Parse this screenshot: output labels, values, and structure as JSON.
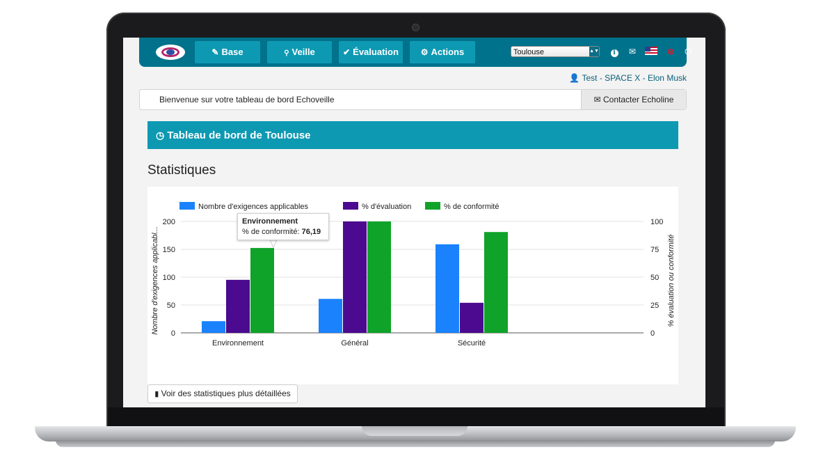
{
  "nav": {
    "items": [
      {
        "icon": "tag-icon",
        "glyph": "✎",
        "label": "Base"
      },
      {
        "icon": "search-icon",
        "glyph": "🔍",
        "label": "Veille"
      },
      {
        "icon": "check-icon",
        "glyph": "✔",
        "label": "Évaluation"
      },
      {
        "icon": "gears-icon",
        "glyph": "⚙",
        "label": "Actions"
      }
    ],
    "city_select": "Toulouse"
  },
  "user": {
    "label": "Test - SPACE X - Elon Musk"
  },
  "welcome": {
    "text": "Bienvenue sur votre tableau de bord Echoveille",
    "contact_label": "Contacter Echoline"
  },
  "dashboard": {
    "title": "Tableau de bord de Toulouse"
  },
  "section": {
    "title": "Statistiques"
  },
  "details_button": "Voir des statistiques plus détaillées",
  "tooltip": {
    "category": "Environnement",
    "label": "% de conformité:",
    "value": "76,19"
  },
  "colors": {
    "topbar": "#00728c",
    "nav_button": "#0e99b3",
    "series_1": "#1a82fc",
    "series_2": "#4b0a8f",
    "series_3": "#0fa32a"
  },
  "chart_data": {
    "type": "bar",
    "categories": [
      "Environnement",
      "Général",
      "Sécurité"
    ],
    "series": [
      {
        "name": "Nombre d'exigences applicables",
        "axis": "left",
        "values": [
          21,
          61,
          159
        ]
      },
      {
        "name": "% d'évaluation",
        "axis": "right",
        "values": [
          47.6,
          100,
          27
        ]
      },
      {
        "name": "% de conformité",
        "axis": "right",
        "values": [
          76.19,
          100,
          90.5
        ]
      }
    ],
    "ylabel_left": "Nombre d'exigences applicabl...",
    "ylabel_right": "% évaluation ou conformité",
    "ylim_left": [
      0,
      200
    ],
    "ylim_right": [
      0,
      100
    ],
    "yticks_left": [
      0,
      50,
      100,
      150,
      200
    ],
    "yticks_right": [
      0,
      25,
      50,
      75,
      100
    ],
    "legend_position": "top",
    "grid": true
  }
}
